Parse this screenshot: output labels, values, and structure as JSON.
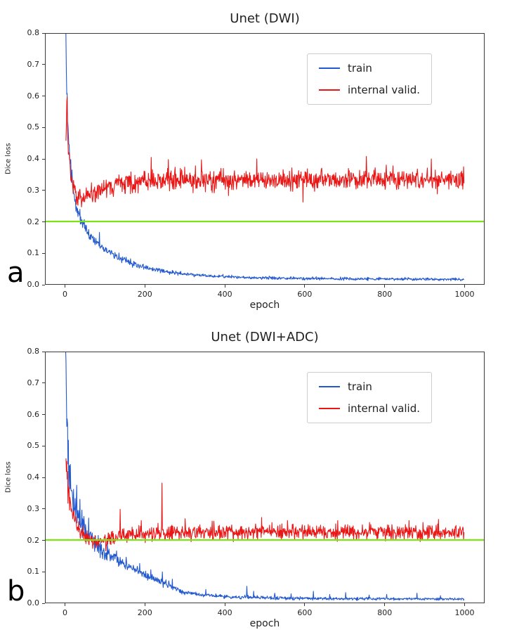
{
  "figure_labels": [
    "a",
    "b"
  ],
  "colors": {
    "train": "#2359cf",
    "valid": "#ea1717",
    "threshold": "#7de314",
    "spine": "#3a3a3a",
    "text": "#222222",
    "background": "#ffffff"
  },
  "chart_data": [
    {
      "type": "line",
      "title": "Unet (DWI)",
      "xlabel": "epoch",
      "ylabel": "Dice loss",
      "xlim": [
        -50,
        1050
      ],
      "ylim": [
        0,
        0.8
      ],
      "grid": false,
      "legend_position": "upper-right",
      "xticks": [
        [
          0,
          "0"
        ],
        [
          200,
          "200"
        ],
        [
          400,
          "400"
        ],
        [
          600,
          "600"
        ],
        [
          800,
          "800"
        ],
        [
          1000,
          "1000"
        ]
      ],
      "yticks": [
        [
          0,
          "0.0"
        ],
        [
          0.1,
          "0.1"
        ],
        [
          0.2,
          "0.2"
        ],
        [
          0.3,
          "0.3"
        ],
        [
          0.4,
          "0.4"
        ],
        [
          0.5,
          "0.5"
        ],
        [
          0.6,
          "0.6"
        ],
        [
          0.7,
          "0.7"
        ],
        [
          0.8,
          "0.8"
        ]
      ],
      "legend": [
        {
          "label": "train",
          "color": "#2359cf"
        },
        {
          "label": "internal valid.",
          "color": "#ea1717"
        }
      ],
      "hline": {
        "y": 0.2,
        "color": "#7de314"
      },
      "series": [
        {
          "name": "train",
          "color": "#2359cf",
          "seed": 11,
          "start": 0,
          "end": 1000,
          "floor": 0.006,
          "trend": [
            [
              0,
              0.86
            ],
            [
              3,
              0.62
            ],
            [
              6,
              0.5
            ],
            [
              10,
              0.42
            ],
            [
              14,
              0.36
            ],
            [
              18,
              0.31
            ],
            [
              24,
              0.265
            ],
            [
              30,
              0.235
            ],
            [
              38,
              0.21
            ],
            [
              48,
              0.185
            ],
            [
              60,
              0.16
            ],
            [
              75,
              0.14
            ],
            [
              95,
              0.115
            ],
            [
              120,
              0.095
            ],
            [
              150,
              0.075
            ],
            [
              185,
              0.058
            ],
            [
              220,
              0.047
            ],
            [
              260,
              0.038
            ],
            [
              300,
              0.032
            ],
            [
              360,
              0.026
            ],
            [
              430,
              0.022
            ],
            [
              520,
              0.019
            ],
            [
              650,
              0.017
            ],
            [
              800,
              0.016
            ],
            [
              1000,
              0.015
            ]
          ],
          "noise": [
            [
              0,
              0.03
            ],
            [
              20,
              0.014
            ],
            [
              60,
              0.008
            ],
            [
              150,
              0.005
            ],
            [
              300,
              0.0025
            ],
            [
              1000,
              0.002
            ]
          ],
          "spikes": [
            [
              85,
              0.165
            ],
            [
              91,
              0.125
            ],
            [
              122,
              0.082
            ],
            [
              141,
              0.068
            ],
            [
              170,
              0.06
            ],
            [
              232,
              0.05
            ],
            [
              330,
              0.032
            ],
            [
              410,
              0.028
            ],
            [
              520,
              0.024
            ],
            [
              700,
              0.022
            ],
            [
              860,
              0.021
            ]
          ]
        },
        {
          "name": "internal valid.",
          "color": "#ea1717",
          "seed": 22,
          "start": 1,
          "end": 1000,
          "floor": 0,
          "trend": [
            [
              1,
              0.48
            ],
            [
              3,
              0.62
            ],
            [
              6,
              0.5
            ],
            [
              10,
              0.4
            ],
            [
              15,
              0.335
            ],
            [
              22,
              0.3
            ],
            [
              30,
              0.282
            ],
            [
              40,
              0.272
            ],
            [
              60,
              0.285
            ],
            [
              90,
              0.3
            ],
            [
              130,
              0.318
            ],
            [
              200,
              0.33
            ],
            [
              400,
              0.333
            ],
            [
              700,
              0.335
            ],
            [
              1000,
              0.335
            ]
          ],
          "noise": [
            [
              1,
              0.035
            ],
            [
              8,
              0.025
            ],
            [
              20,
              0.016
            ],
            [
              60,
              0.014
            ],
            [
              150,
              0.016
            ],
            [
              1000,
              0.016
            ]
          ],
          "spikes": [
            [
              215,
              0.405
            ],
            [
              258,
              0.398
            ],
            [
              341,
              0.397
            ],
            [
              480,
              0.4
            ],
            [
              596,
              0.262
            ],
            [
              755,
              0.408
            ],
            [
              918,
              0.4
            ]
          ]
        }
      ]
    },
    {
      "type": "line",
      "title": "Unet (DWI+ADC)",
      "xlabel": "epoch",
      "ylabel": "Dice loss",
      "xlim": [
        -50,
        1050
      ],
      "ylim": [
        0,
        0.8
      ],
      "grid": false,
      "legend_position": "upper-right",
      "xticks": [
        [
          0,
          "0"
        ],
        [
          200,
          "200"
        ],
        [
          400,
          "400"
        ],
        [
          600,
          "600"
        ],
        [
          800,
          "800"
        ],
        [
          1000,
          "1000"
        ]
      ],
      "yticks": [
        [
          0,
          "0.0"
        ],
        [
          0.1,
          "0.1"
        ],
        [
          0.2,
          "0.2"
        ],
        [
          0.3,
          "0.3"
        ],
        [
          0.4,
          "0.4"
        ],
        [
          0.5,
          "0.5"
        ],
        [
          0.6,
          "0.6"
        ],
        [
          0.7,
          "0.7"
        ],
        [
          0.8,
          "0.8"
        ]
      ],
      "legend": [
        {
          "label": "train",
          "color": "#2359cf"
        },
        {
          "label": "internal valid.",
          "color": "#ea1717"
        }
      ],
      "hline": {
        "y": 0.2,
        "color": "#7de314"
      },
      "series": [
        {
          "name": "train",
          "color": "#2359cf",
          "seed": 33,
          "start": 0,
          "end": 1000,
          "floor": 0.005,
          "trend": [
            [
              0,
              0.8
            ],
            [
              3,
              0.58
            ],
            [
              6,
              0.46
            ],
            [
              10,
              0.385
            ],
            [
              15,
              0.345
            ],
            [
              22,
              0.31
            ],
            [
              30,
              0.285
            ],
            [
              40,
              0.25
            ],
            [
              52,
              0.222
            ],
            [
              65,
              0.2
            ],
            [
              80,
              0.178
            ],
            [
              100,
              0.158
            ],
            [
              120,
              0.145
            ],
            [
              145,
              0.125
            ],
            [
              170,
              0.108
            ],
            [
              200,
              0.088
            ],
            [
              230,
              0.072
            ],
            [
              258,
              0.058
            ],
            [
              280,
              0.042
            ],
            [
              300,
              0.032
            ],
            [
              340,
              0.025
            ],
            [
              400,
              0.019
            ],
            [
              500,
              0.015
            ],
            [
              700,
              0.012
            ],
            [
              1000,
              0.011
            ]
          ],
          "noise": [
            [
              0,
              0.045
            ],
            [
              25,
              0.028
            ],
            [
              60,
              0.015
            ],
            [
              120,
              0.01
            ],
            [
              200,
              0.007
            ],
            [
              300,
              0.003
            ],
            [
              1000,
              0.002
            ]
          ],
          "spikes": [
            [
              28,
              0.375
            ],
            [
              36,
              0.33
            ],
            [
              58,
              0.27
            ],
            [
              105,
              0.195
            ],
            [
              128,
              0.165
            ],
            [
              152,
              0.145
            ],
            [
              186,
              0.125
            ],
            [
              214,
              0.105
            ],
            [
              243,
              0.098
            ],
            [
              268,
              0.075
            ],
            [
              352,
              0.042
            ],
            [
              455,
              0.052
            ],
            [
              472,
              0.036
            ],
            [
              525,
              0.03
            ],
            [
              566,
              0.028
            ],
            [
              622,
              0.036
            ],
            [
              663,
              0.026
            ],
            [
              703,
              0.032
            ],
            [
              762,
              0.024
            ],
            [
              806,
              0.026
            ],
            [
              882,
              0.03
            ],
            [
              941,
              0.022
            ]
          ]
        },
        {
          "name": "internal valid.",
          "color": "#ea1717",
          "seed": 44,
          "start": 1,
          "end": 1000,
          "floor": 0,
          "trend": [
            [
              1,
              0.46
            ],
            [
              4,
              0.4
            ],
            [
              8,
              0.345
            ],
            [
              13,
              0.31
            ],
            [
              18,
              0.285
            ],
            [
              25,
              0.258
            ],
            [
              33,
              0.235
            ],
            [
              42,
              0.215
            ],
            [
              55,
              0.202
            ],
            [
              70,
              0.195
            ],
            [
              90,
              0.2
            ],
            [
              110,
              0.205
            ],
            [
              135,
              0.212
            ],
            [
              170,
              0.218
            ],
            [
              220,
              0.222
            ],
            [
              350,
              0.226
            ],
            [
              600,
              0.225
            ],
            [
              1000,
              0.224
            ]
          ],
          "noise": [
            [
              1,
              0.035
            ],
            [
              10,
              0.022
            ],
            [
              30,
              0.016
            ],
            [
              60,
              0.014
            ],
            [
              120,
              0.012
            ],
            [
              1000,
              0.012
            ]
          ],
          "spikes": [
            [
              137,
              0.298
            ],
            [
              190,
              0.262
            ],
            [
              242,
              0.382
            ],
            [
              300,
              0.268
            ],
            [
              372,
              0.26
            ],
            [
              492,
              0.272
            ],
            [
              557,
              0.262
            ],
            [
              683,
              0.262
            ],
            [
              763,
              0.256
            ],
            [
              862,
              0.262
            ],
            [
              936,
              0.266
            ]
          ]
        }
      ]
    }
  ]
}
